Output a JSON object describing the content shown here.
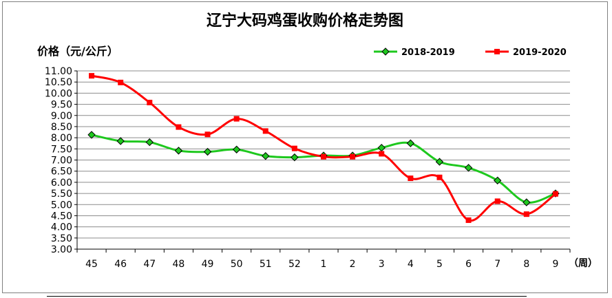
{
  "chart_data": {
    "type": "line",
    "title": "辽宁大码鸡蛋收购价格走势图",
    "ylabel": "价格（元/公斤）",
    "xlabel": "（周）",
    "ylim": [
      3.0,
      11.0
    ],
    "ytick_step": 0.5,
    "grid": true,
    "legend_position": "top-right",
    "categories": [
      "45",
      "46",
      "47",
      "48",
      "49",
      "50",
      "51",
      "52",
      "1",
      "2",
      "3",
      "4",
      "5",
      "6",
      "7",
      "8",
      "9"
    ],
    "series": [
      {
        "name": "2018-2019",
        "color": "#1ec81e",
        "marker": "diamond",
        "values": [
          8.13,
          7.85,
          7.8,
          7.42,
          7.37,
          7.47,
          7.18,
          7.12,
          7.2,
          7.2,
          7.55,
          7.75,
          6.92,
          6.65,
          6.08,
          5.1,
          5.5
        ]
      },
      {
        "name": "2019-2020",
        "color": "#ff0000",
        "marker": "square",
        "values": [
          10.78,
          10.48,
          9.58,
          8.48,
          8.15,
          8.85,
          8.3,
          7.52,
          7.15,
          7.15,
          7.28,
          6.18,
          6.22,
          4.3,
          5.15,
          4.57,
          5.48
        ]
      }
    ]
  }
}
